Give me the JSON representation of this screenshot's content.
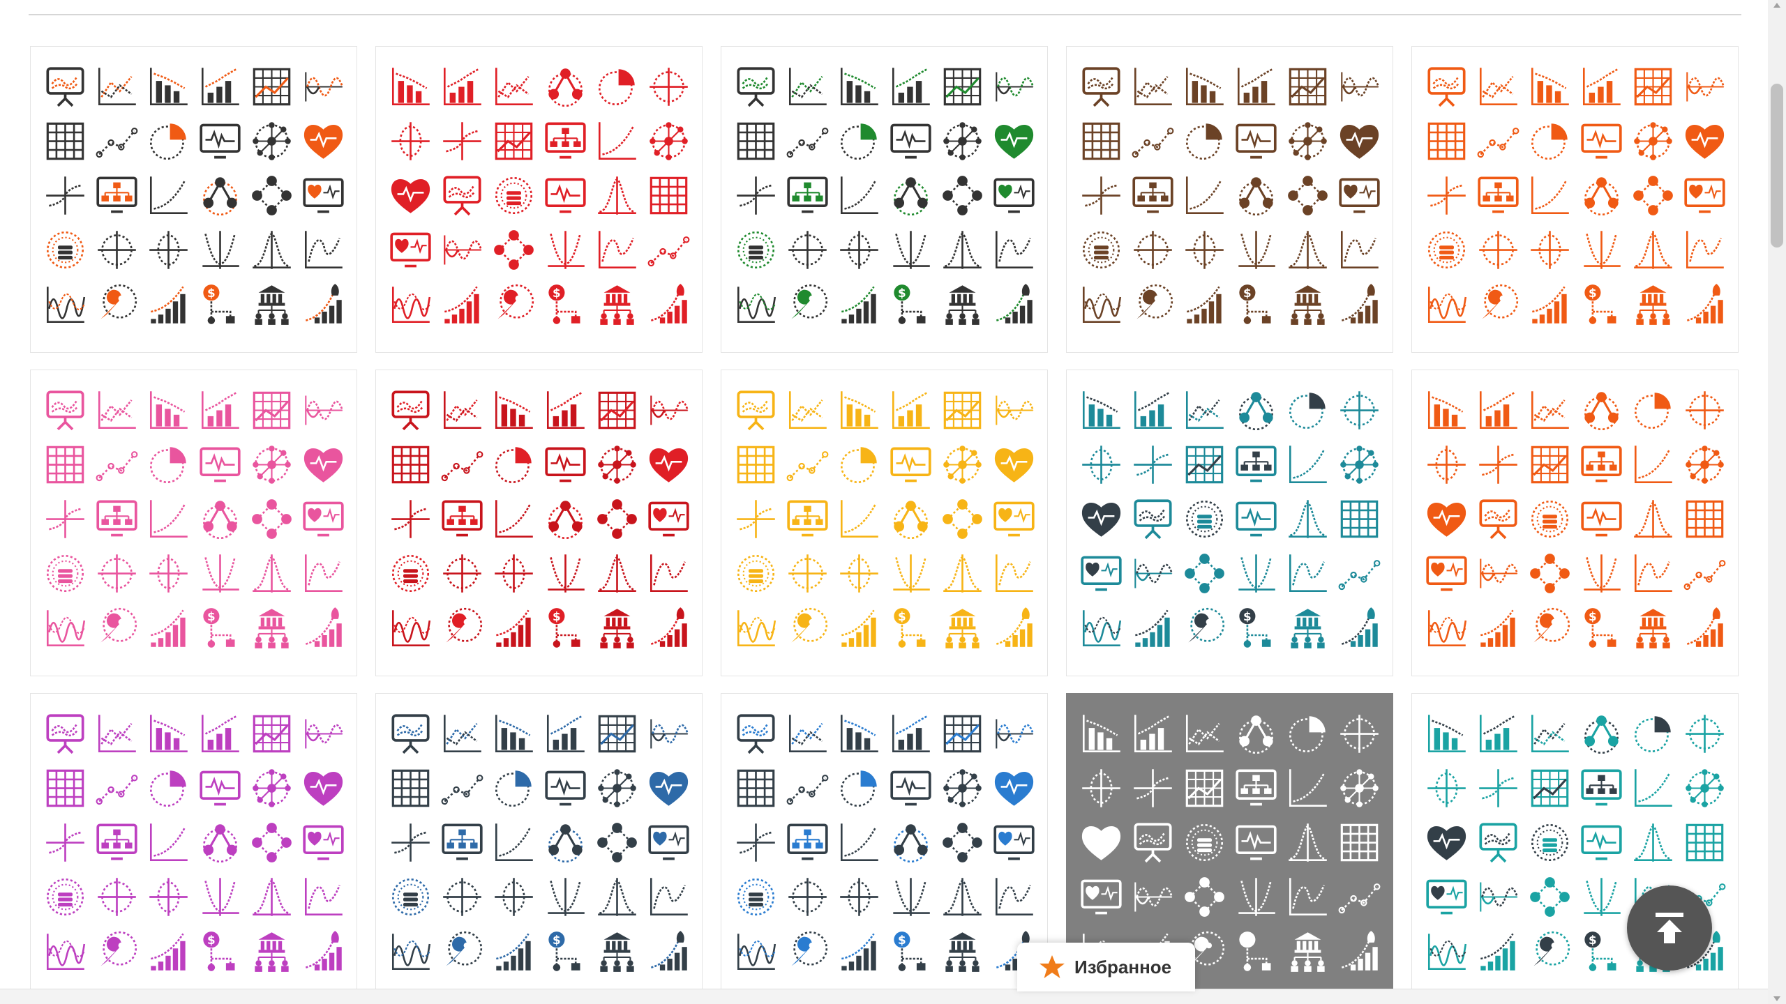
{
  "favorites": {
    "label": "Избранное",
    "star_color": "#f07c1a"
  },
  "icon_set": [
    "presentation-chart-icon",
    "line-chart-icon",
    "bar-chart-down-icon",
    "bar-chart-up-icon",
    "table-chart-icon",
    "sine-wave-icon",
    "grid-icon",
    "dotted-line-icon",
    "pie-chart-icon",
    "monitor-wave-icon",
    "network-circle-icon",
    "heart-pulse-icon",
    "cross-axis-icon",
    "monitor-hierarchy-icon",
    "growth-curve-icon",
    "triangle-nodes-icon",
    "diamond-nodes-icon",
    "monitor-heart-icon",
    "database-ring-icon",
    "crosshair-icon",
    "crosshair-circle-icon",
    "parabola-icon",
    "gauss-curve-icon",
    "curve-chart-icon",
    "wave-axis-icon",
    "wrench-icon",
    "rising-bars-icon",
    "dollar-flow-icon",
    "bank-hierarchy-icon",
    "rocket-bars-icon"
  ],
  "cards": [
    {
      "variant": "a",
      "primary": "#333333",
      "accent": "#f05a14",
      "background": "#ffffff"
    },
    {
      "variant": "b",
      "primary": "#e01f26",
      "accent": "#e01f26",
      "background": "#ffffff"
    },
    {
      "variant": "a",
      "primary": "#333333",
      "accent": "#1f8a2e",
      "background": "#ffffff"
    },
    {
      "variant": "a",
      "primary": "#6b4226",
      "accent": "#6b4226",
      "background": "#ffffff"
    },
    {
      "variant": "a",
      "primary": "#f05a14",
      "accent": "#f05a14",
      "background": "#ffffff"
    },
    {
      "variant": "a",
      "primary": "#e9559e",
      "accent": "#e9559e",
      "background": "#ffffff"
    },
    {
      "variant": "a",
      "primary": "#c8141c",
      "accent": "#e01f26",
      "background": "#ffffff"
    },
    {
      "variant": "a",
      "primary": "#f7b416",
      "accent": "#f7b416",
      "background": "#ffffff"
    },
    {
      "variant": "b",
      "primary": "#1d8a99",
      "accent": "#333f48",
      "background": "#ffffff"
    },
    {
      "variant": "b",
      "primary": "#f05a14",
      "accent": "#f05a14",
      "background": "#ffffff"
    },
    {
      "variant": "a",
      "primary": "#bd3fc0",
      "accent": "#bd3fc0",
      "background": "#ffffff"
    },
    {
      "variant": "a",
      "primary": "#333f48",
      "accent": "#2e6aa8",
      "background": "#ffffff"
    },
    {
      "variant": "a",
      "primary": "#333f48",
      "accent": "#2a7cd0",
      "background": "#ffffff"
    },
    {
      "variant": "b",
      "primary": "#ffffff",
      "accent": "#ffffff",
      "background": "#808080"
    },
    {
      "variant": "b",
      "primary": "#1aa3a3",
      "accent": "#333f48",
      "background": "#ffffff"
    }
  ]
}
